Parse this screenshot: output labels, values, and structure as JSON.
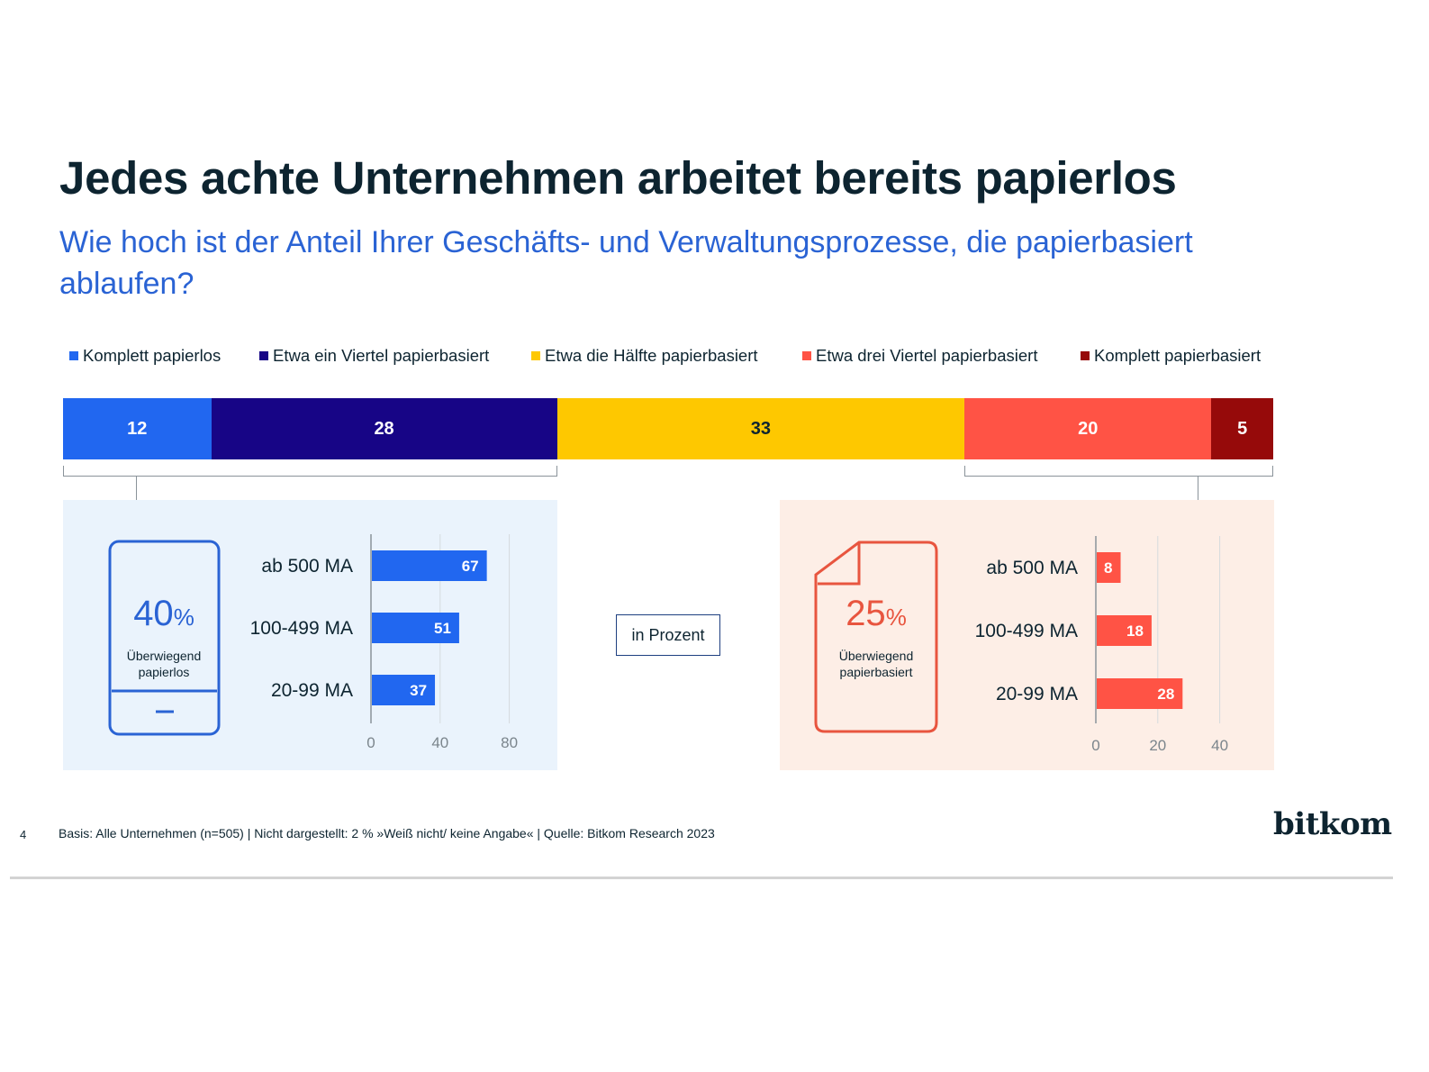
{
  "title": "Jedes achte Unternehmen arbeitet bereits papierlos",
  "question": "Wie hoch ist der Anteil Ihrer Geschäfts- und Verwaltungsprozesse, die papierbasiert ablaufen?",
  "colors": {
    "komplett_papierlos": "#2167f0",
    "viertel": "#170586",
    "haelfte": "#fec800",
    "drei_viertel": "#ff5345",
    "komplett_papierbasiert": "#960a0a",
    "left_accent": "#2a63d4",
    "right_accent": "#e8553f"
  },
  "unit_label": "in Prozent",
  "chart_data": [
    {
      "type": "bar",
      "orientation": "horizontal-stacked",
      "series": [
        {
          "name": "Komplett papierlos",
          "value": 12,
          "color": "#2167f0"
        },
        {
          "name": "Etwa ein Viertel papierbasiert",
          "value": 28,
          "color": "#170586"
        },
        {
          "name": "Etwa die Hälfte papierbasiert",
          "value": 33,
          "color": "#fec800"
        },
        {
          "name": "Etwa drei Viertel papierbasiert",
          "value": 20,
          "color": "#ff5345"
        },
        {
          "name": "Komplett papierbasiert",
          "value": 5,
          "color": "#960a0a"
        }
      ],
      "legend": "top"
    },
    {
      "type": "bar",
      "orientation": "horizontal",
      "summary_value": "40",
      "summary_unit": "%",
      "summary_label": "Überwiegend papierlos",
      "categories": [
        "ab 500 MA",
        "100-499 MA",
        "20-99 MA"
      ],
      "values": [
        67,
        51,
        37
      ],
      "xlim": [
        0,
        100
      ],
      "xticks": [
        0,
        40,
        80
      ],
      "grid": true,
      "color": "#2167f0"
    },
    {
      "type": "bar",
      "orientation": "horizontal",
      "summary_value": "25",
      "summary_unit": "%",
      "summary_label": "Überwiegend papierbasiert",
      "categories": [
        "ab 500 MA",
        "100-499 MA",
        "20-99 MA"
      ],
      "values": [
        8,
        18,
        28
      ],
      "xlim": [
        0,
        50
      ],
      "xticks": [
        0,
        20,
        40
      ],
      "grid": true,
      "color": "#ff5345"
    }
  ],
  "footnote": "Basis: Alle Unternehmen (n=505) | Nicht dargestellt: 2 % »Weiß nicht/ keine Angabe« |  Quelle: Bitkom Research 2023",
  "page_number": "4",
  "logo_text": "bitkom"
}
